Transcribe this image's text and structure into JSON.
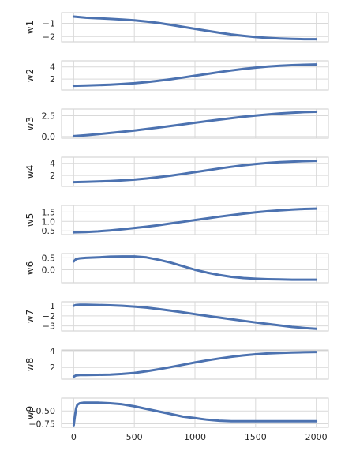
{
  "chart_data": [
    {
      "type": "line",
      "ylabel": "w1",
      "ylim": [
        -2.4,
        -0.2
      ],
      "yticks": [
        -1,
        -2
      ],
      "xlim": [
        -100,
        2100
      ],
      "xticks": [
        0,
        500,
        1000,
        1500,
        2000
      ],
      "show_xtick_labels": false,
      "grid": true,
      "color": "#4c72b0",
      "series": [
        {
          "x": [
            0,
            100,
            200,
            300,
            400,
            500,
            600,
            700,
            800,
            900,
            1000,
            1100,
            1200,
            1300,
            1400,
            1500,
            1600,
            1700,
            1800,
            1900,
            2000
          ],
          "y": [
            -0.5,
            -0.58,
            -0.62,
            -0.67,
            -0.72,
            -0.78,
            -0.87,
            -0.98,
            -1.12,
            -1.27,
            -1.42,
            -1.57,
            -1.71,
            -1.84,
            -1.95,
            -2.04,
            -2.1,
            -2.15,
            -2.18,
            -2.2,
            -2.2
          ]
        }
      ]
    },
    {
      "type": "line",
      "ylabel": "w2",
      "ylim": [
        0.2,
        5.0
      ],
      "yticks": [
        2,
        4
      ],
      "xlim": [
        -100,
        2100
      ],
      "xticks": [
        0,
        500,
        1000,
        1500,
        2000
      ],
      "show_xtick_labels": false,
      "grid": true,
      "color": "#4c72b0",
      "series": [
        {
          "x": [
            0,
            100,
            200,
            300,
            400,
            500,
            600,
            700,
            800,
            900,
            1000,
            1100,
            1200,
            1300,
            1400,
            1500,
            1600,
            1700,
            1800,
            1900,
            2000
          ],
          "y": [
            0.9,
            0.95,
            1.0,
            1.08,
            1.18,
            1.32,
            1.5,
            1.72,
            1.97,
            2.25,
            2.55,
            2.85,
            3.15,
            3.42,
            3.67,
            3.88,
            4.05,
            4.18,
            4.28,
            4.35,
            4.4
          ]
        }
      ]
    },
    {
      "type": "line",
      "ylabel": "w3",
      "ylim": [
        -0.2,
        3.3
      ],
      "yticks": [
        0.0,
        2.5
      ],
      "ytick_labels": [
        "0.0",
        "2.5"
      ],
      "xlim": [
        -100,
        2100
      ],
      "xticks": [
        0,
        500,
        1000,
        1500,
        2000
      ],
      "show_xtick_labels": false,
      "grid": true,
      "color": "#4c72b0",
      "series": [
        {
          "x": [
            0,
            100,
            200,
            300,
            400,
            500,
            600,
            700,
            800,
            900,
            1000,
            1100,
            1200,
            1300,
            1400,
            1500,
            1600,
            1700,
            1800,
            1900,
            2000
          ],
          "y": [
            0.05,
            0.15,
            0.28,
            0.42,
            0.57,
            0.73,
            0.9,
            1.08,
            1.27,
            1.46,
            1.65,
            1.84,
            2.02,
            2.2,
            2.37,
            2.52,
            2.65,
            2.77,
            2.86,
            2.93,
            2.97
          ]
        }
      ]
    },
    {
      "type": "line",
      "ylabel": "w4",
      "ylim": [
        0.2,
        5.0
      ],
      "yticks": [
        2,
        4
      ],
      "xlim": [
        -100,
        2100
      ],
      "xticks": [
        0,
        500,
        1000,
        1500,
        2000
      ],
      "show_xtick_labels": false,
      "grid": true,
      "color": "#4c72b0",
      "series": [
        {
          "x": [
            0,
            100,
            200,
            300,
            400,
            500,
            600,
            700,
            800,
            900,
            1000,
            1100,
            1200,
            1300,
            1400,
            1500,
            1600,
            1700,
            1800,
            1900,
            2000
          ],
          "y": [
            0.9,
            0.95,
            1.0,
            1.08,
            1.18,
            1.32,
            1.5,
            1.72,
            1.97,
            2.25,
            2.55,
            2.85,
            3.15,
            3.42,
            3.67,
            3.88,
            4.05,
            4.18,
            4.28,
            4.35,
            4.4
          ]
        }
      ]
    },
    {
      "type": "line",
      "ylabel": "w5",
      "ylim": [
        0.3,
        1.85
      ],
      "yticks": [
        0.5,
        1.0,
        1.5
      ],
      "ytick_labels": [
        "0.5",
        "1.0",
        "1.5"
      ],
      "xlim": [
        -100,
        2100
      ],
      "xticks": [
        0,
        500,
        1000,
        1500,
        2000
      ],
      "show_xtick_labels": false,
      "grid": true,
      "color": "#4c72b0",
      "series": [
        {
          "x": [
            0,
            100,
            200,
            300,
            400,
            500,
            600,
            700,
            800,
            900,
            1000,
            1100,
            1200,
            1300,
            1400,
            1500,
            1600,
            1700,
            1800,
            1900,
            2000
          ],
          "y": [
            0.42,
            0.44,
            0.47,
            0.52,
            0.58,
            0.65,
            0.72,
            0.8,
            0.89,
            0.98,
            1.07,
            1.16,
            1.25,
            1.33,
            1.41,
            1.48,
            1.54,
            1.59,
            1.63,
            1.66,
            1.68
          ]
        }
      ]
    },
    {
      "type": "line",
      "ylabel": "w6",
      "ylim": [
        -0.55,
        0.68
      ],
      "yticks": [
        0.5,
        0.0
      ],
      "ytick_labels": [
        "0.5",
        "0.0"
      ],
      "xlim": [
        -100,
        2100
      ],
      "xticks": [
        0,
        500,
        1000,
        1500,
        2000
      ],
      "show_xtick_labels": false,
      "grid": true,
      "color": "#4c72b0",
      "series": [
        {
          "x": [
            0,
            20,
            50,
            100,
            200,
            300,
            400,
            500,
            600,
            700,
            800,
            900,
            1000,
            1100,
            1200,
            1300,
            1400,
            1500,
            1600,
            1700,
            1800,
            1900,
            2000
          ],
          "y": [
            0.35,
            0.45,
            0.48,
            0.5,
            0.52,
            0.55,
            0.56,
            0.56,
            0.52,
            0.42,
            0.3,
            0.15,
            0.0,
            -0.12,
            -0.22,
            -0.3,
            -0.35,
            -0.38,
            -0.4,
            -0.41,
            -0.42,
            -0.42,
            -0.42
          ]
        }
      ]
    },
    {
      "type": "line",
      "ylabel": "w7",
      "ylim": [
        -3.5,
        -0.6
      ],
      "yticks": [
        -1,
        -2,
        -3
      ],
      "xlim": [
        -100,
        2100
      ],
      "xticks": [
        0,
        500,
        1000,
        1500,
        2000
      ],
      "show_xtick_labels": false,
      "grid": true,
      "color": "#4c72b0",
      "series": [
        {
          "x": [
            0,
            20,
            50,
            100,
            200,
            300,
            400,
            500,
            600,
            700,
            800,
            900,
            1000,
            1100,
            1200,
            1300,
            1400,
            1500,
            1600,
            1700,
            1800,
            1900,
            2000
          ],
          "y": [
            -1.0,
            -0.92,
            -0.9,
            -0.9,
            -0.92,
            -0.95,
            -1.0,
            -1.08,
            -1.18,
            -1.32,
            -1.48,
            -1.65,
            -1.83,
            -2.0,
            -2.17,
            -2.33,
            -2.5,
            -2.65,
            -2.8,
            -2.95,
            -3.1,
            -3.2,
            -3.28
          ]
        }
      ]
    },
    {
      "type": "line",
      "ylabel": "w8",
      "ylim": [
        0.6,
        4.1
      ],
      "yticks": [
        2,
        4
      ],
      "xlim": [
        -100,
        2100
      ],
      "xticks": [
        0,
        500,
        1000,
        1500,
        2000
      ],
      "show_xtick_labels": false,
      "grid": true,
      "color": "#4c72b0",
      "series": [
        {
          "x": [
            0,
            20,
            50,
            100,
            200,
            300,
            400,
            500,
            600,
            700,
            800,
            900,
            1000,
            1100,
            1200,
            1300,
            1400,
            1500,
            1600,
            1700,
            1800,
            1900,
            2000
          ],
          "y": [
            0.9,
            1.05,
            1.1,
            1.1,
            1.12,
            1.15,
            1.22,
            1.35,
            1.55,
            1.78,
            2.05,
            2.32,
            2.6,
            2.85,
            3.08,
            3.28,
            3.45,
            3.58,
            3.68,
            3.75,
            3.8,
            3.83,
            3.85
          ]
        }
      ]
    },
    {
      "type": "line",
      "ylabel": "w9",
      "ylim": [
        -0.82,
        -0.25
      ],
      "yticks": [
        -0.5,
        -0.75
      ],
      "ytick_labels": [
        "−0.50",
        "−0.75"
      ],
      "xlim": [
        -100,
        2100
      ],
      "xticks": [
        0,
        500,
        1000,
        1500,
        2000
      ],
      "xtick_labels": [
        "0",
        "500",
        "1000",
        "1500",
        "2000"
      ],
      "show_xtick_labels": true,
      "grid": true,
      "color": "#4c72b0",
      "series": [
        {
          "x": [
            0,
            10,
            20,
            30,
            50,
            80,
            100,
            200,
            300,
            400,
            500,
            600,
            700,
            800,
            900,
            1000,
            1100,
            1200,
            1300,
            1400,
            1500,
            1600,
            1700,
            1800,
            1900,
            2000
          ],
          "y": [
            -0.78,
            -0.6,
            -0.45,
            -0.38,
            -0.35,
            -0.34,
            -0.34,
            -0.34,
            -0.35,
            -0.37,
            -0.41,
            -0.46,
            -0.51,
            -0.56,
            -0.61,
            -0.64,
            -0.67,
            -0.69,
            -0.7,
            -0.7,
            -0.7,
            -0.7,
            -0.7,
            -0.7,
            -0.7,
            -0.7
          ]
        }
      ]
    }
  ]
}
